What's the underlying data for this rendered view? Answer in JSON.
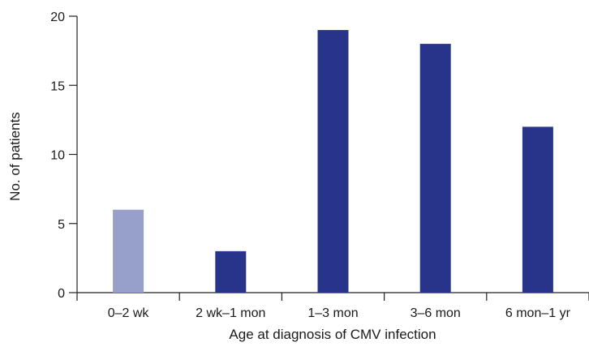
{
  "chart_data": {
    "type": "bar",
    "title": "",
    "xlabel": "Age at diagnosis of CMV infection",
    "ylabel": "No. of patients",
    "categories": [
      "0–2 wk",
      "2 wk–1 mon",
      "1–3 mon",
      "3–6 mon",
      "6 mon–1 yr"
    ],
    "values": [
      6,
      3,
      19,
      18,
      12
    ],
    "bar_colors": [
      "#97a0cb",
      "#28348a",
      "#28348a",
      "#28348a",
      "#28348a"
    ],
    "ylim": [
      0,
      20
    ],
    "yticks": [
      0,
      5,
      10,
      15,
      20
    ],
    "ytick_labels": [
      "0",
      "5",
      "10",
      "15",
      "20"
    ],
    "grid": false,
    "legend": "none"
  }
}
